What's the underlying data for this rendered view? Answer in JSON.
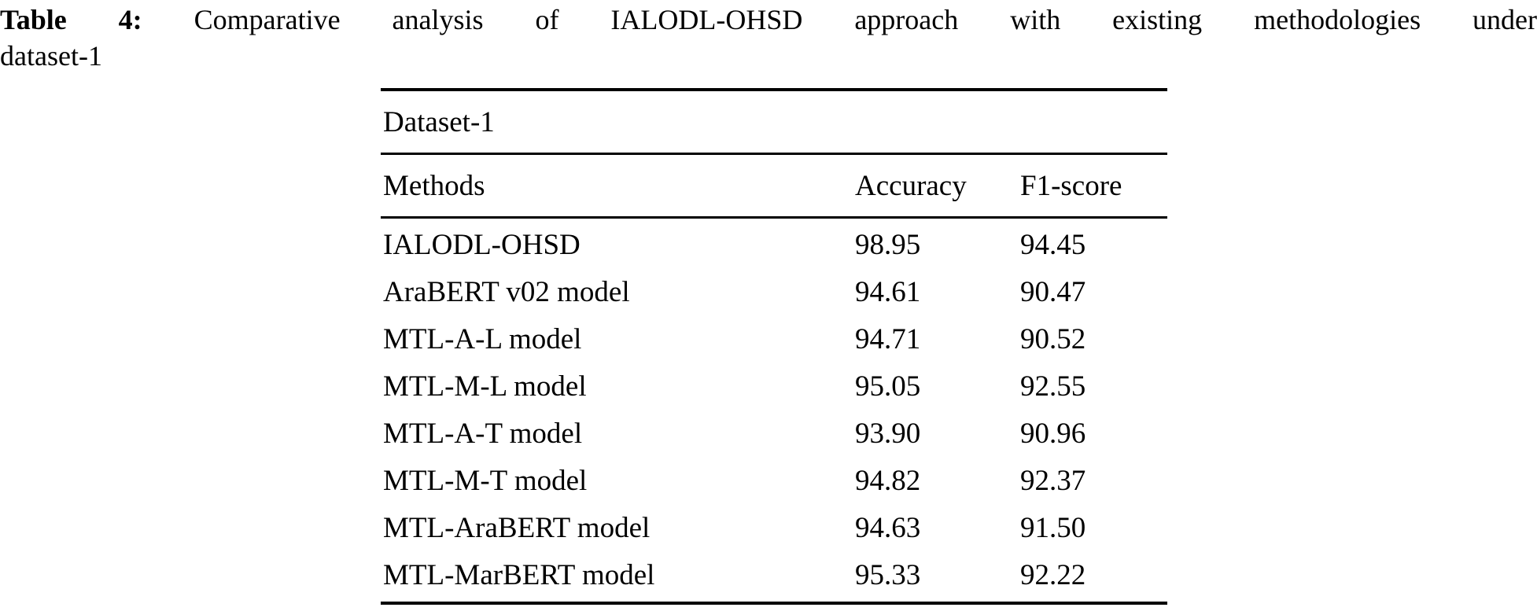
{
  "caption": {
    "label": "Table 4:",
    "line1": "Comparative analysis of IALODL-OHSD approach with existing methodologies under",
    "line2": "dataset-1"
  },
  "table": {
    "group_header": "Dataset-1",
    "columns": {
      "method": "Methods",
      "accuracy": "Accuracy",
      "f1": "F1-score"
    },
    "rows": [
      {
        "method": "IALODL-OHSD",
        "accuracy": "98.95",
        "f1": "94.45"
      },
      {
        "method": "AraBERT v02 model",
        "accuracy": "94.61",
        "f1": "90.47"
      },
      {
        "method": "MTL-A-L model",
        "accuracy": "94.71",
        "f1": "90.52"
      },
      {
        "method": "MTL-M-L model",
        "accuracy": "95.05",
        "f1": "92.55"
      },
      {
        "method": "MTL-A-T model",
        "accuracy": "93.90",
        "f1": "90.96"
      },
      {
        "method": "MTL-M-T model",
        "accuracy": "94.82",
        "f1": "92.37"
      },
      {
        "method": "MTL-AraBERT model",
        "accuracy": "94.63",
        "f1": "91.50"
      },
      {
        "method": "MTL-MarBERT model",
        "accuracy": "95.33",
        "f1": "92.22"
      }
    ]
  },
  "colors": {
    "text": "#000000",
    "background": "#ffffff",
    "rule": "#000000"
  }
}
